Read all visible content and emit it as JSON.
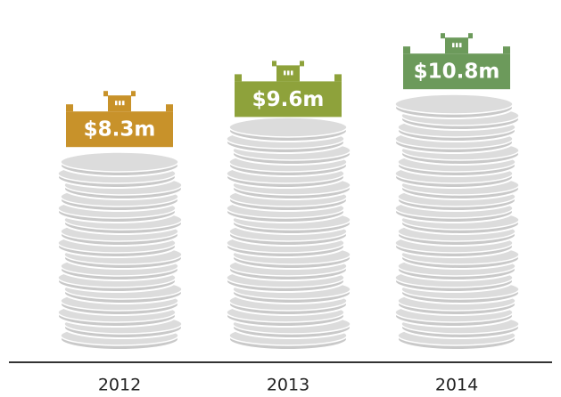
{
  "chart_data": {
    "type": "coin-stack",
    "categories": [
      "2012",
      "2013",
      "2014"
    ],
    "series": [
      {
        "values": [
          8.3,
          9.6,
          10.8
        ],
        "value_labels": [
          "$8.3m",
          "$9.6m",
          "$10.8m"
        ],
        "colors": [
          "#c8922a",
          "#8ea23b",
          "#6c9a5b"
        ]
      }
    ]
  }
}
